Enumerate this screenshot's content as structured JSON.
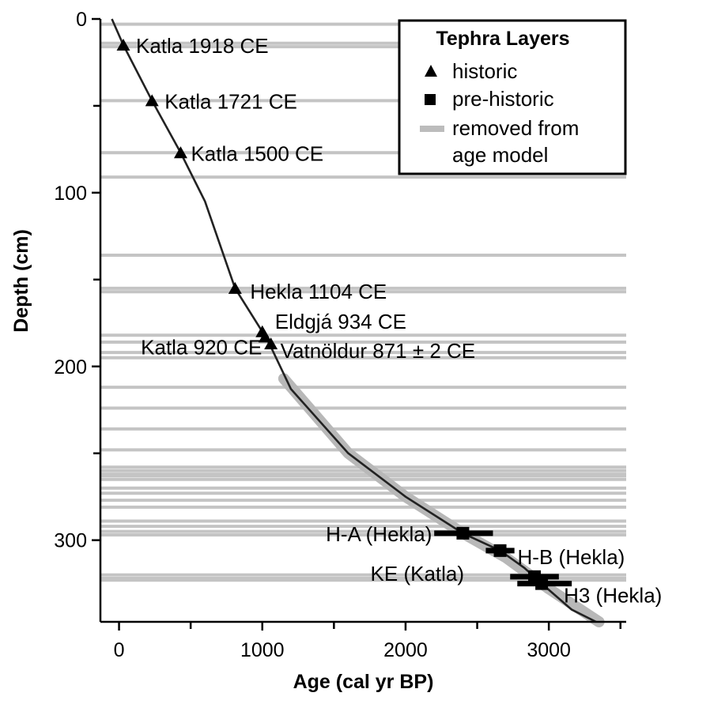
{
  "chart_data": {
    "type": "scatter",
    "xlabel": "Age (cal yr BP)",
    "ylabel": "Depth (cm)",
    "xlim": [
      -130,
      3540
    ],
    "ylim": [
      0,
      347
    ],
    "y_reversed": true,
    "x_ticks": [
      0,
      1000,
      2000,
      3000
    ],
    "x_minor_ticks": [
      500,
      1500,
      2500,
      3500
    ],
    "y_ticks": [
      0,
      100,
      200,
      300
    ],
    "y_minor_ticks": [
      50,
      150,
      250
    ],
    "grid": false,
    "legend": {
      "title": "Tephra Layers",
      "position": "top-right",
      "entries": [
        {
          "label": "historic",
          "marker": "triangle"
        },
        {
          "label": "pre-historic",
          "marker": "square"
        },
        {
          "label_lines": [
            "removed from",
            "age model"
          ],
          "marker": "gray-band"
        }
      ]
    },
    "age_model": {
      "points": [
        [
          -50,
          0
        ],
        [
          30,
          15
        ],
        [
          230,
          47
        ],
        [
          430,
          77
        ],
        [
          600,
          105
        ],
        [
          810,
          155
        ],
        [
          1000,
          180
        ],
        [
          1050,
          187
        ],
        [
          1200,
          213
        ],
        [
          1600,
          250
        ],
        [
          2000,
          275
        ],
        [
          2400,
          296
        ],
        [
          2660,
          306
        ],
        [
          2830,
          316
        ],
        [
          2950,
          325
        ],
        [
          3160,
          340
        ],
        [
          3330,
          347
        ]
      ],
      "uncertainty_band": [
        [
          1150,
          207
        ],
        [
          1600,
          250
        ],
        [
          2000,
          275
        ],
        [
          2400,
          296
        ],
        [
          2700,
          310
        ],
        [
          3000,
          328
        ],
        [
          3350,
          347
        ]
      ]
    },
    "removed_layers_depth": [
      3,
      14,
      16,
      47,
      77,
      91,
      136,
      155,
      157,
      182,
      186,
      192,
      195,
      212,
      224,
      236,
      248,
      258,
      260,
      262,
      263,
      265,
      270,
      273,
      277,
      281,
      289,
      292,
      295,
      297,
      320,
      322,
      323
    ],
    "historic": [
      {
        "label": "Katla 1918 CE",
        "age": 30,
        "depth": 15
      },
      {
        "label": "Katla 1721 CE",
        "age": 230,
        "depth": 47
      },
      {
        "label": "Katla 1500 CE",
        "age": 430,
        "depth": 77
      },
      {
        "label": "Hekla 1104 CE",
        "age": 810,
        "depth": 155
      },
      {
        "label": "Eldgjá 934 CE",
        "age": 1000,
        "depth": 180
      },
      {
        "label": "Katla 920 CE",
        "age": 1020,
        "depth": 183
      },
      {
        "label": "Vatnöldur 871 ± 2 CE",
        "age": 1060,
        "depth": 187
      }
    ],
    "prehistoric": [
      {
        "label": "H-A (Hekla)",
        "age": 2400,
        "xerr_low": 2200,
        "xerr_high": 2610,
        "depth": 296
      },
      {
        "label": "H-B (Hekla)",
        "age": 2660,
        "xerr_low": 2560,
        "xerr_high": 2760,
        "depth": 306
      },
      {
        "label": "KE (Katla)",
        "age": 2900,
        "xerr_low": 2730,
        "xerr_high": 3070,
        "depth": 321
      },
      {
        "label": "H3 (Hekla)",
        "age": 2950,
        "xerr_low": 2780,
        "xerr_high": 3160,
        "depth": 325
      }
    ]
  }
}
